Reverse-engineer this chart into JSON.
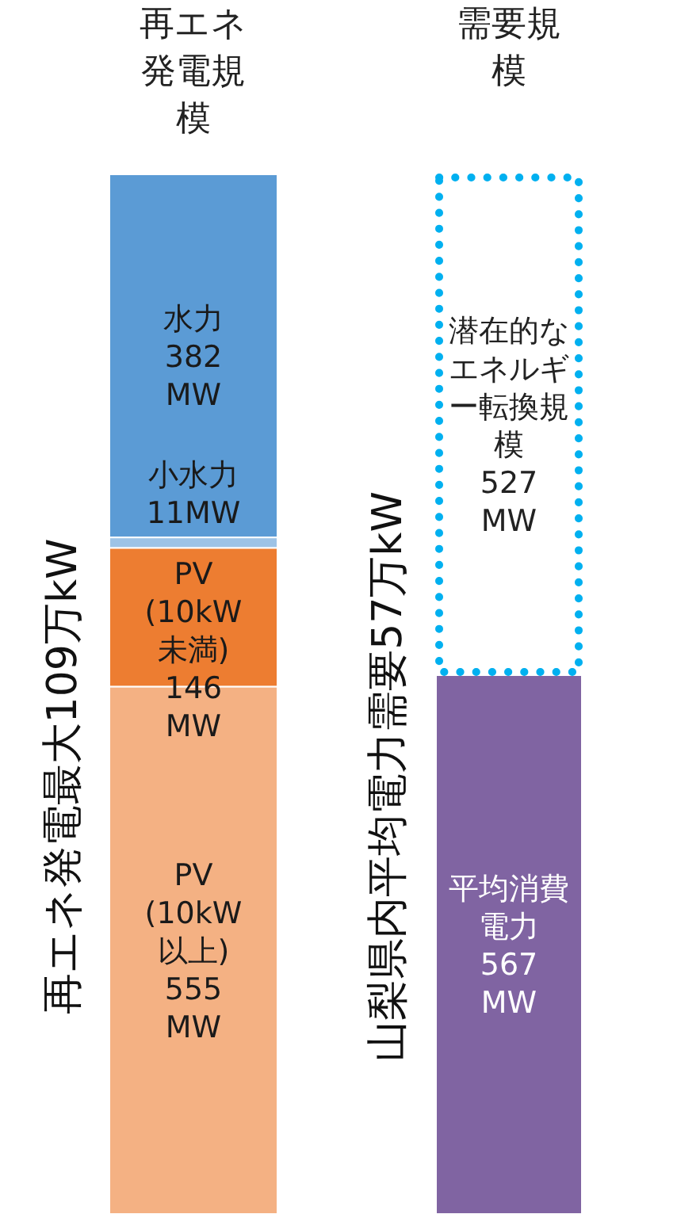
{
  "chart_data": {
    "type": "bar",
    "stacked": true,
    "categories": [
      "再エネ発電規模",
      "需要規模"
    ],
    "series": [
      {
        "name": "PV\n(10kW以上)",
        "color": "#f4b183",
        "values": [
          555,
          null
        ],
        "value_labels": [
          "555\nMW",
          null
        ]
      },
      {
        "name": "PV\n(10kW未満)",
        "color": "#ed7d31",
        "values": [
          146,
          null
        ],
        "value_labels": [
          "146\nMW",
          null
        ]
      },
      {
        "name": "小水力",
        "color": "#9dc3e6",
        "values": [
          11,
          null
        ],
        "value_labels": [
          "11MW",
          null
        ]
      },
      {
        "name": "水力",
        "color": "#5b9bd5",
        "values": [
          382,
          null
        ],
        "value_labels": [
          "382\nMW",
          null
        ]
      },
      {
        "name": "平均消費電力",
        "color": "#8064a2",
        "values": [
          null,
          567
        ],
        "value_labels": [
          null,
          "567\nMW"
        ]
      },
      {
        "name": "潜在的なエネルギー転換規模",
        "color": "#00b0f0",
        "line_style": "dotted",
        "values": [
          null,
          527
        ],
        "value_labels": [
          null,
          "527\nMW"
        ]
      }
    ],
    "annotations": [
      "再エネ発電最大109万kW",
      "山梨県内平均電力需要57万kW"
    ]
  }
}
